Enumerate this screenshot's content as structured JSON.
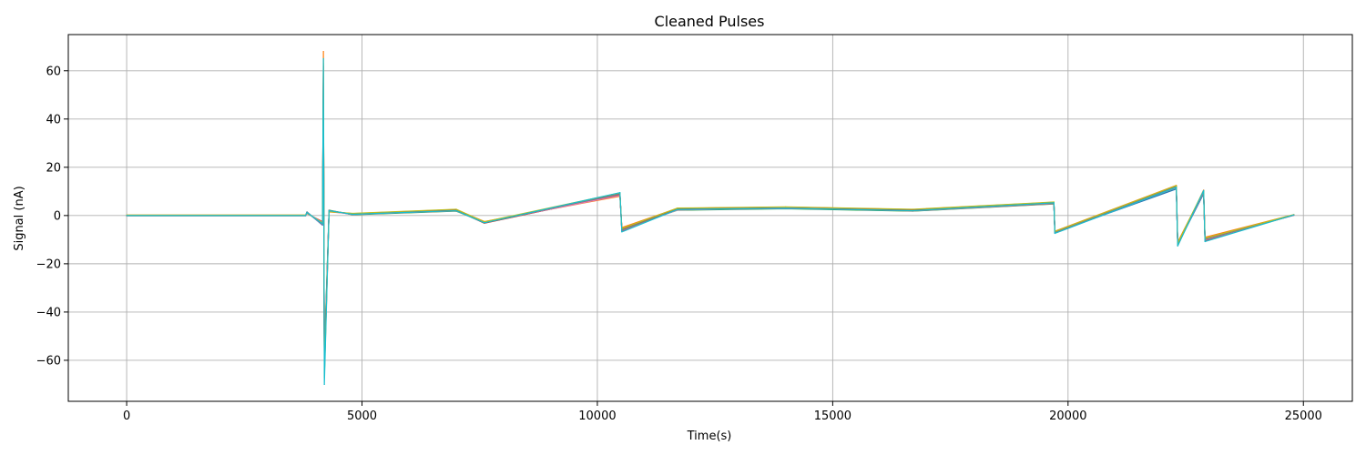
{
  "chart_data": {
    "type": "line",
    "title": "Cleaned Pulses",
    "xlabel": "Time(s)",
    "ylabel": "Signal (nA)",
    "xlim": [
      -1240,
      26040
    ],
    "ylim": [
      -77,
      75
    ],
    "xticks": [
      0,
      5000,
      10000,
      15000,
      20000,
      25000
    ],
    "xtick_labels": [
      "0",
      "5000",
      "10000",
      "15000",
      "20000",
      "25000"
    ],
    "yticks": [
      -60,
      -40,
      -20,
      0,
      20,
      40,
      60
    ],
    "ytick_labels": [
      "−60",
      "−40",
      "−20",
      "0",
      "20",
      "40",
      "60"
    ],
    "grid": true,
    "legend": "none",
    "series": [
      {
        "color": "#1f77b4",
        "x": [
          0,
          3800,
          3830,
          4160,
          4180,
          4200,
          4300,
          4800,
          7000,
          7600,
          10480,
          10520,
          11700,
          14000,
          16700,
          19700,
          19720,
          22300,
          22330,
          22880,
          22910,
          24800
        ],
        "y": [
          0,
          0,
          1.5,
          -4,
          45,
          -62,
          2,
          0.5,
          2,
          -3,
          9,
          -6,
          2.5,
          3,
          2,
          5,
          -7,
          11,
          -12,
          9,
          -10,
          0.3
        ]
      },
      {
        "color": "#ff7f0e",
        "x": [
          0,
          3800,
          3830,
          4160,
          4180,
          4200,
          4300,
          4800,
          7000,
          7600,
          10480,
          10520,
          11700,
          14000,
          16700,
          19700,
          19720,
          22300,
          22330,
          22880,
          22910,
          24800
        ],
        "y": [
          0.2,
          0.2,
          1,
          -3,
          68,
          -66,
          1.5,
          0.8,
          2.5,
          -2.5,
          8,
          -5,
          3,
          3.5,
          2.5,
          5.5,
          -6.5,
          12.5,
          -11,
          10,
          -9,
          0.4
        ]
      },
      {
        "color": "#2ca02c",
        "x": [
          0,
          3800,
          3830,
          4160,
          4180,
          4200,
          4300,
          4800,
          7000,
          7600,
          10480,
          10520,
          11700,
          14000,
          16700,
          19700,
          19720,
          22300,
          22330,
          22880,
          22910,
          24800
        ],
        "y": [
          -0.1,
          -0.1,
          1.2,
          -3.5,
          55,
          -58,
          2.2,
          0.3,
          1.8,
          -2.8,
          8.5,
          -5.5,
          2.2,
          2.8,
          1.8,
          4.8,
          -6.8,
          11.5,
          -11.5,
          9.5,
          -9.5,
          0.2
        ]
      },
      {
        "color": "#d62728",
        "x": [
          0,
          3800,
          3830,
          4160,
          4180,
          4200,
          4300,
          4800,
          7000,
          7600,
          10480,
          10520,
          11700,
          14000,
          16700,
          19700,
          19720,
          22300,
          22330,
          22880,
          22910,
          24800
        ],
        "y": [
          0.1,
          0.1,
          0.8,
          -2.5,
          62,
          -64,
          1.8,
          0.6,
          2.2,
          -3.2,
          8.8,
          -6.5,
          2.6,
          3.2,
          2.2,
          5.2,
          -7.2,
          12,
          -12.5,
          10.5,
          -10.5,
          0.3
        ]
      },
      {
        "color": "#9467bd",
        "x": [
          0,
          3800,
          3830,
          4160,
          4180,
          4200,
          4300,
          4800,
          7000,
          7600,
          10480,
          10520,
          11700,
          14000,
          16700,
          19700,
          19720,
          22300,
          22330,
          22880,
          22910,
          24800
        ],
        "y": [
          0,
          0,
          1.3,
          -3.8,
          50,
          -60,
          2.1,
          0.4,
          2.1,
          -2.9,
          9.2,
          -6.2,
          2.4,
          2.9,
          2.1,
          5.1,
          -7.1,
          11.8,
          -11.8,
          9.8,
          -9.8,
          0.1
        ]
      },
      {
        "color": "#8c564b",
        "x": [
          0,
          3800,
          3830,
          4160,
          4180,
          4200,
          4300,
          4800,
          7000,
          7600,
          10480,
          10520,
          11700,
          14000,
          16700,
          19700,
          19720,
          22300,
          22330,
          22880,
          22910,
          24800
        ],
        "y": [
          0.1,
          0.1,
          1.1,
          -3.2,
          58,
          -63,
          1.9,
          0.7,
          2.3,
          -3.1,
          8.7,
          -5.8,
          2.7,
          3.3,
          2.3,
          5.3,
          -6.9,
          12.2,
          -12.2,
          10.2,
          -10.2,
          0.2
        ]
      },
      {
        "color": "#e377c2",
        "x": [
          0,
          3800,
          3830,
          4160,
          4180,
          4200,
          4300,
          4800,
          7000,
          7600,
          10480,
          10520,
          11700,
          14000,
          16700,
          19700,
          19720,
          22300,
          22330,
          22880,
          22910,
          24800
        ],
        "y": [
          -0.1,
          -0.1,
          0.9,
          -2.8,
          60,
          -65,
          1.7,
          0.5,
          1.9,
          -2.7,
          8.3,
          -6.1,
          2.3,
          3.1,
          1.9,
          4.9,
          -7.3,
          11.6,
          -11.9,
          9.6,
          -10.1,
          0.3
        ]
      },
      {
        "color": "#7f7f7f",
        "x": [
          0,
          3800,
          3830,
          4160,
          4180,
          4200,
          4300,
          4800,
          7000,
          7600,
          10480,
          10520,
          11700,
          14000,
          16700,
          19700,
          19720,
          22300,
          22330,
          22880,
          22910,
          24800
        ],
        "y": [
          0,
          0,
          1.4,
          -3.6,
          52,
          -59,
          2,
          0.6,
          2,
          -3,
          9,
          -6,
          2.5,
          3,
          2,
          5,
          -7,
          11.9,
          -12.1,
          9.9,
          -9.9,
          0.2
        ]
      },
      {
        "color": "#bcbd22",
        "x": [
          0,
          3800,
          3830,
          4160,
          4180,
          4200,
          4300,
          4800,
          7000,
          7600,
          10480,
          10520,
          11700,
          14000,
          16700,
          19700,
          19720,
          22300,
          22330,
          22880,
          22910,
          24800
        ],
        "y": [
          0.2,
          0.2,
          1,
          -3,
          63,
          -67,
          1.6,
          0.9,
          2.6,
          -2.6,
          9.4,
          -5.4,
          3.1,
          3.6,
          2.6,
          5.6,
          -6.6,
          12.4,
          -11.4,
          10.4,
          -9.4,
          0.4
        ]
      },
      {
        "color": "#17becf",
        "x": [
          0,
          3800,
          3830,
          4160,
          4180,
          4200,
          4300,
          4800,
          7000,
          7600,
          10480,
          10520,
          11700,
          14000,
          16700,
          19700,
          19720,
          22300,
          22330,
          22880,
          22910,
          24800
        ],
        "y": [
          0,
          0,
          1.2,
          -3.4,
          65,
          -70,
          2,
          0.5,
          2,
          -3,
          9.5,
          -6.8,
          2.5,
          3,
          2,
          5.3,
          -7.4,
          11.7,
          -12.6,
          10.3,
          -10.8,
          0.3
        ]
      }
    ]
  }
}
